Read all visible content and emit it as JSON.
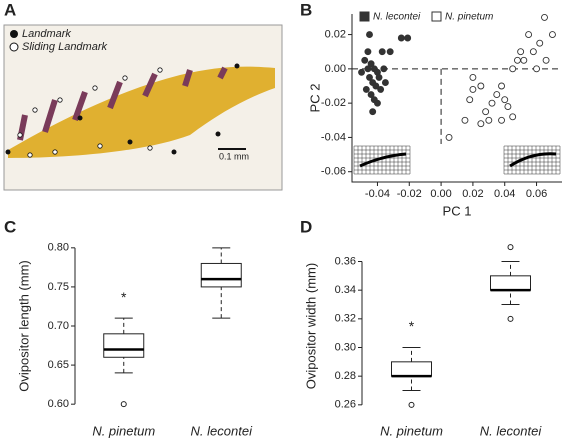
{
  "photo": {
    "panel": "A",
    "legend": [
      "Landmark",
      "Sliding Landmark"
    ],
    "scale_bar": "0.1 mm"
  },
  "chart_data": [
    {
      "type": "scatter",
      "panel": "B",
      "xlabel": "PC  1",
      "ylabel": "PC  2",
      "xlim": [
        -0.056,
        0.076
      ],
      "ylim": [
        -0.066,
        0.032
      ],
      "xticks": [
        -0.04,
        -0.02,
        {
          "value": 0,
          "label": "0.00"
        },
        0.02,
        0.04,
        0.06
      ],
      "yticks": [
        0.02,
        {
          "value": 0,
          "label": "0.00"
        },
        -0.02,
        -0.04,
        -0.06
      ],
      "series": [
        {
          "name": "N. lecontei",
          "color": "#333333",
          "filled": true,
          "x": [
            -0.045,
            -0.037,
            -0.032,
            -0.025,
            -0.021,
            -0.048,
            -0.046,
            -0.044,
            -0.042,
            -0.04,
            -0.045,
            -0.043,
            -0.041,
            -0.039,
            -0.047,
            -0.044,
            -0.042,
            -0.04,
            -0.038,
            -0.036,
            -0.046,
            -0.05,
            -0.035,
            -0.043
          ],
          "y": [
            0.02,
            0.01,
            0.01,
            0.018,
            0.018,
            0.005,
            0.0,
            0.003,
            0.0,
            -0.002,
            -0.005,
            -0.008,
            -0.01,
            -0.005,
            -0.012,
            -0.015,
            -0.018,
            -0.02,
            -0.012,
            0.0,
            0.01,
            -0.002,
            -0.008,
            -0.025
          ]
        },
        {
          "name": "N. pinetum",
          "color": "#333333",
          "filled": false,
          "x": [
            0.065,
            0.07,
            0.062,
            0.058,
            0.055,
            0.05,
            0.052,
            0.06,
            0.066,
            0.048,
            0.045,
            0.038,
            0.035,
            0.04,
            0.042,
            0.025,
            0.02,
            0.018,
            0.028,
            0.03,
            0.025,
            0.015,
            0.005,
            0.038,
            0.045,
            0.02,
            0.032
          ],
          "y": [
            0.03,
            0.02,
            0.015,
            0.01,
            0.02,
            0.01,
            0.005,
            0.0,
            0.005,
            0.005,
            0.0,
            -0.01,
            -0.015,
            -0.018,
            -0.022,
            -0.01,
            -0.012,
            -0.018,
            -0.025,
            -0.03,
            -0.032,
            -0.03,
            -0.04,
            -0.03,
            -0.028,
            -0.005,
            -0.02
          ]
        }
      ]
    },
    {
      "type": "box",
      "panel": "C",
      "ylabel": "Ovipositor length (mm)",
      "annotation": "*",
      "ylim": [
        0.59,
        0.81
      ],
      "yticks": [
        {
          "value": 0.6,
          "label": "0.60"
        },
        0.65,
        {
          "value": 0.7,
          "label": "0.70"
        },
        0.75,
        {
          "value": 0.8,
          "label": "0.80"
        }
      ],
      "categories": [
        "N. pinetum",
        "N. lecontei"
      ],
      "boxes": [
        {
          "min": 0.64,
          "q1": 0.66,
          "median": 0.67,
          "q3": 0.69,
          "max": 0.71,
          "outliers": [
            0.6
          ]
        },
        {
          "min": 0.71,
          "q1": 0.75,
          "median": 0.76,
          "q3": 0.78,
          "max": 0.8,
          "outliers": []
        }
      ]
    },
    {
      "type": "box",
      "panel": "D",
      "ylabel": "Ovipositor  width (mm)",
      "annotation": "*",
      "ylim": [
        0.255,
        0.375
      ],
      "yticks": [
        0.26,
        0.28,
        {
          "value": 0.3,
          "label": "0.30"
        },
        0.32,
        0.34,
        0.36
      ],
      "categories": [
        "N. pinetum",
        "N. lecontei"
      ],
      "boxes": [
        {
          "min": 0.27,
          "q1": 0.28,
          "median": 0.28,
          "q3": 0.29,
          "max": 0.3,
          "outliers": [
            0.26
          ]
        },
        {
          "min": 0.33,
          "q1": 0.34,
          "median": 0.34,
          "q3": 0.35,
          "max": 0.36,
          "outliers": [
            0.32,
            0.37
          ]
        }
      ]
    }
  ]
}
